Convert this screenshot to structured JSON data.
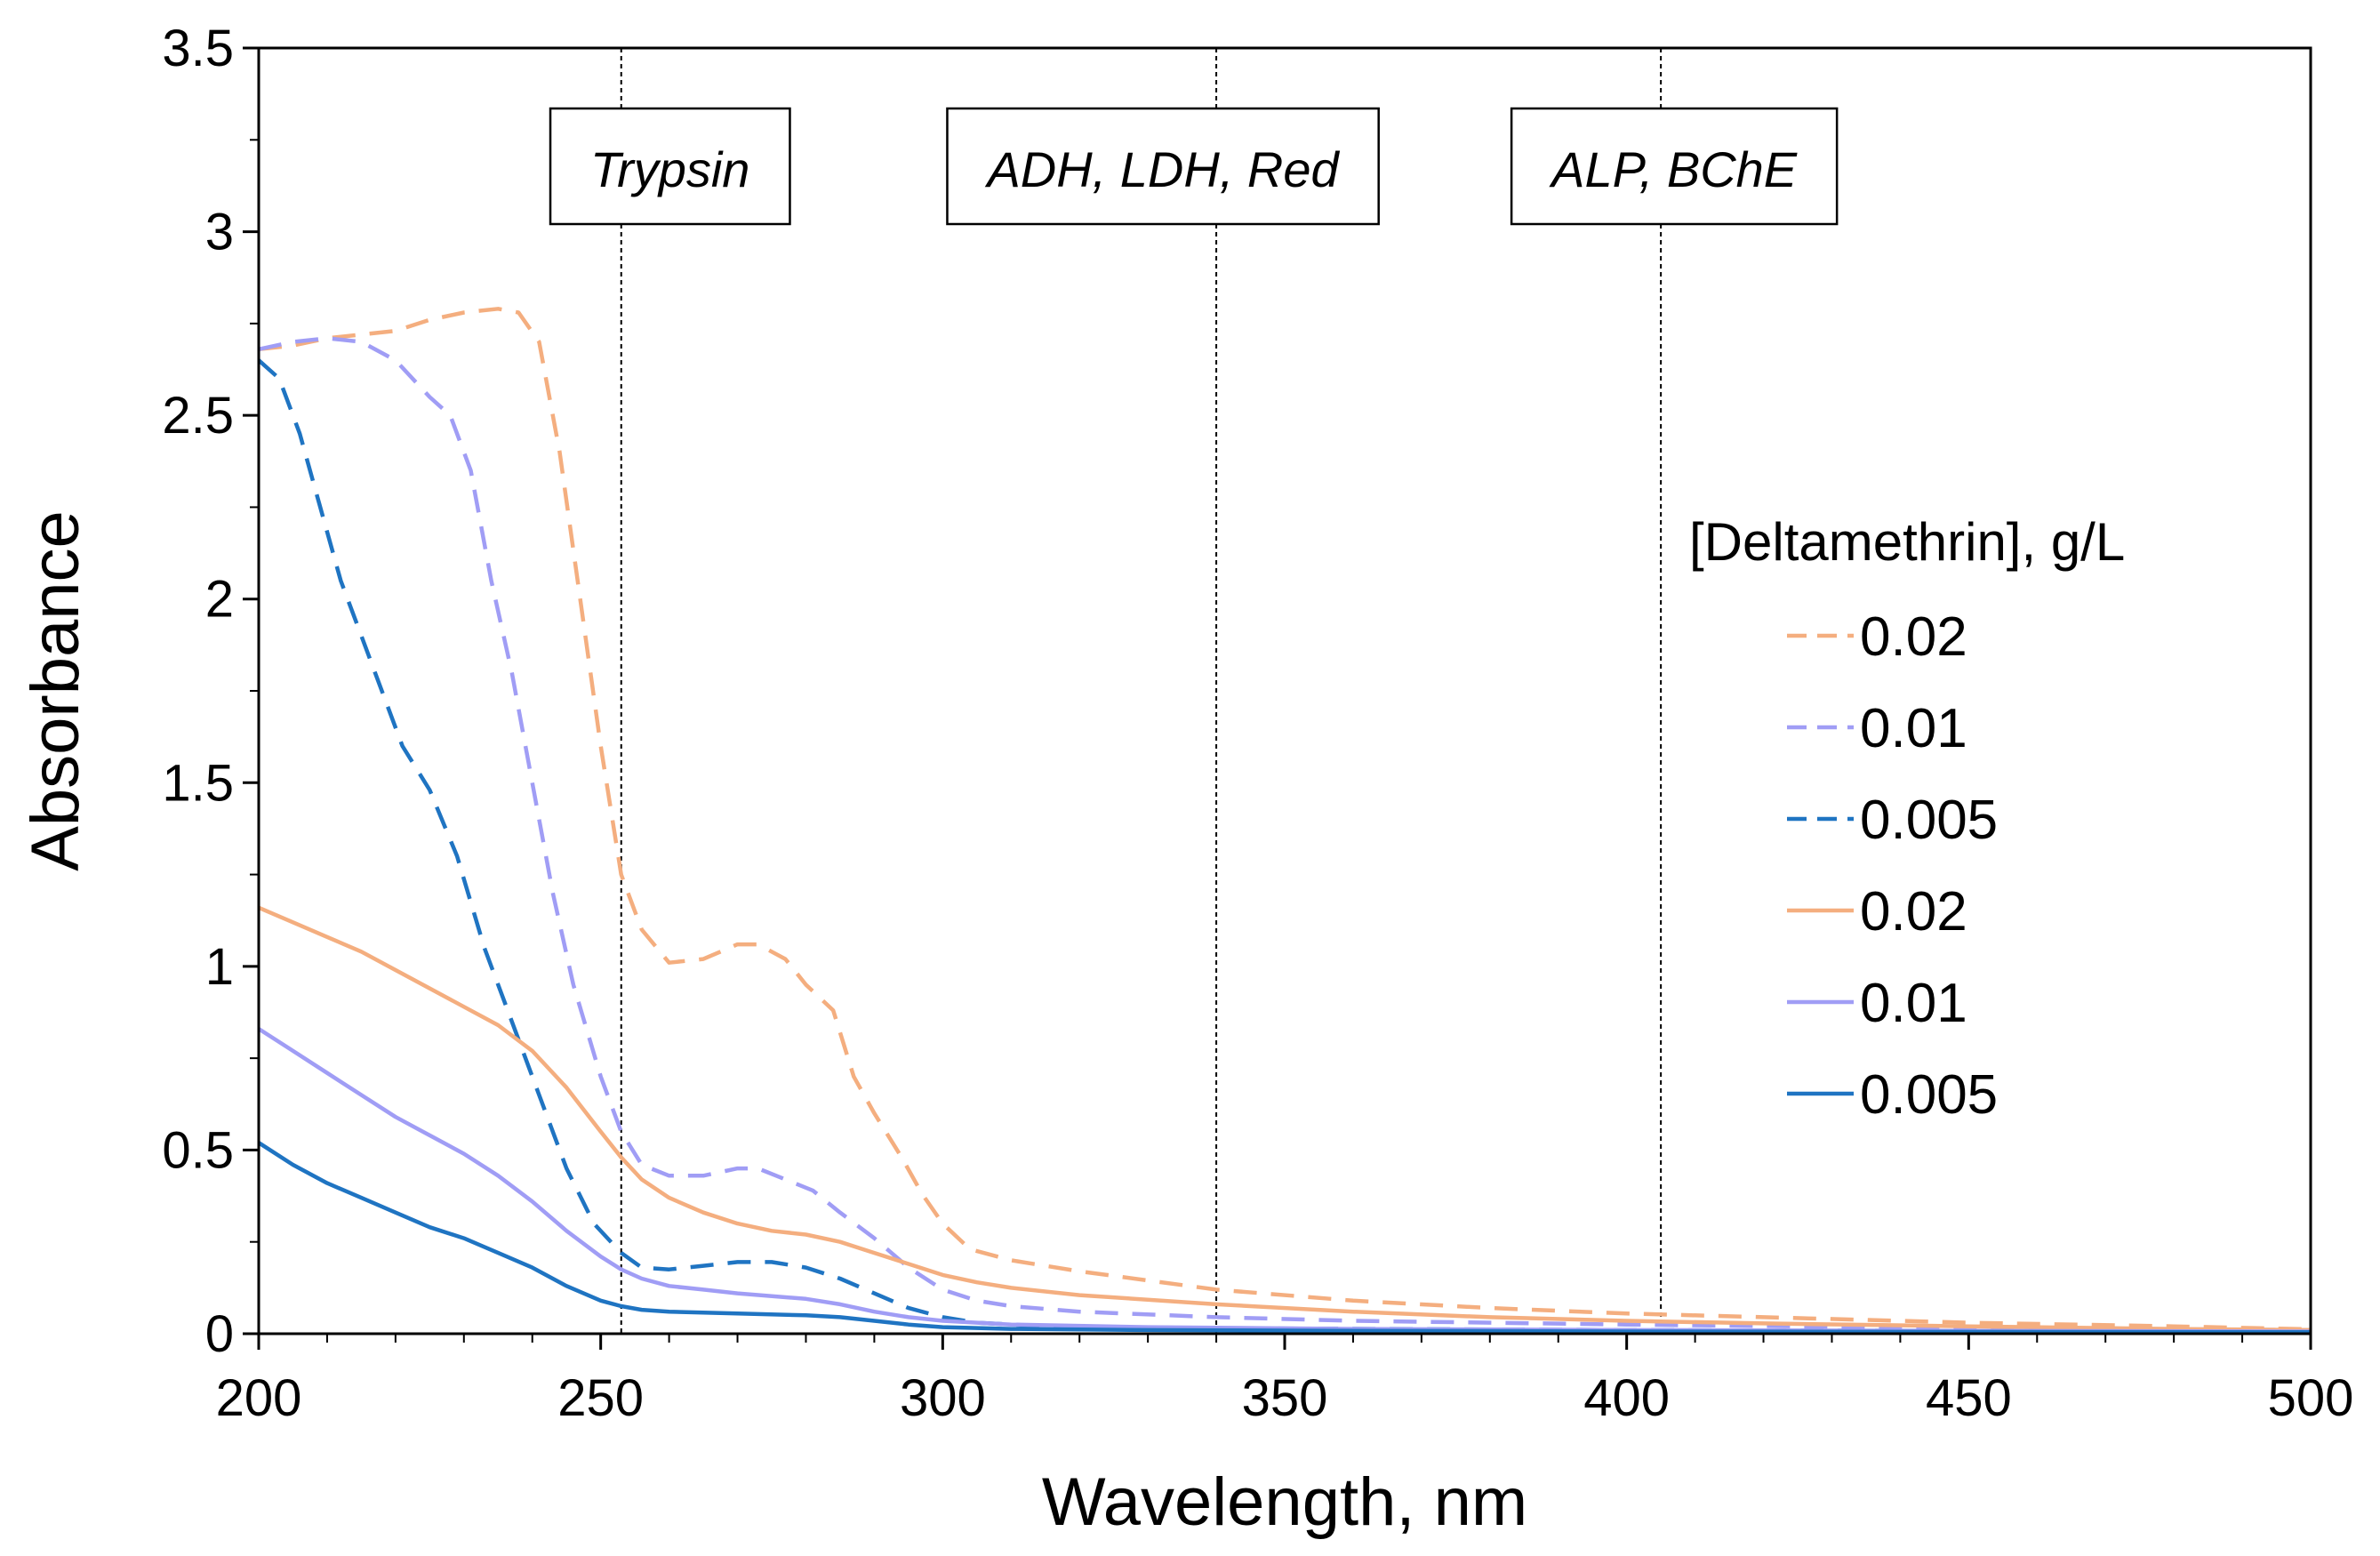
{
  "chart_data": {
    "type": "line",
    "title": "",
    "xlabel": "Wavelength, nm",
    "ylabel": "Absorbance",
    "xlim": [
      200,
      500
    ],
    "ylim": [
      0,
      3.5
    ],
    "xticks": [
      200,
      250,
      300,
      350,
      400,
      450,
      500
    ],
    "xtick_labels": [
      "200",
      "250",
      "300",
      "350",
      "400",
      "450",
      "500"
    ],
    "yticks": [
      0,
      0.5,
      1,
      1.5,
      2,
      2.5,
      3,
      3.5
    ],
    "ytick_labels": [
      "0",
      "0.5",
      "1",
      "1.5",
      "2",
      "2.5",
      "3",
      "3.5"
    ],
    "grid": false,
    "legend": {
      "title": "[Deltamethrin], g/L",
      "placement": "right"
    },
    "annotations": [
      {
        "text": "Trypsin",
        "x": 253
      },
      {
        "text": "ADH, LDH, Red",
        "x": 340
      },
      {
        "text": "ALP, BChE",
        "x": 405
      }
    ],
    "series": [
      {
        "name": "0.02",
        "color": "#F4AE7F",
        "dashed": true,
        "points": [
          [
            200,
            2.68
          ],
          [
            205,
            2.69
          ],
          [
            210,
            2.71
          ],
          [
            215,
            2.72
          ],
          [
            220,
            2.73
          ],
          [
            225,
            2.76
          ],
          [
            230,
            2.78
          ],
          [
            235,
            2.79
          ],
          [
            238,
            2.78
          ],
          [
            241,
            2.7
          ],
          [
            244,
            2.4
          ],
          [
            247,
            2.0
          ],
          [
            250,
            1.6
          ],
          [
            253,
            1.25
          ],
          [
            256,
            1.1
          ],
          [
            260,
            1.01
          ],
          [
            265,
            1.02
          ],
          [
            270,
            1.06
          ],
          [
            273,
            1.06
          ],
          [
            277,
            1.02
          ],
          [
            280,
            0.95
          ],
          [
            284,
            0.88
          ],
          [
            287,
            0.7
          ],
          [
            290,
            0.6
          ],
          [
            294,
            0.48
          ],
          [
            297,
            0.38
          ],
          [
            300,
            0.3
          ],
          [
            304,
            0.23
          ],
          [
            310,
            0.2
          ],
          [
            320,
            0.17
          ],
          [
            340,
            0.12
          ],
          [
            360,
            0.09
          ],
          [
            380,
            0.07
          ],
          [
            400,
            0.055
          ],
          [
            420,
            0.045
          ],
          [
            450,
            0.03
          ],
          [
            480,
            0.02
          ],
          [
            500,
            0.012
          ]
        ]
      },
      {
        "name": "0.01",
        "color": "#A09DF5",
        "dashed": true,
        "points": [
          [
            200,
            2.68
          ],
          [
            205,
            2.7
          ],
          [
            210,
            2.71
          ],
          [
            215,
            2.7
          ],
          [
            220,
            2.65
          ],
          [
            225,
            2.55
          ],
          [
            228,
            2.5
          ],
          [
            231,
            2.35
          ],
          [
            234,
            2.05
          ],
          [
            237,
            1.8
          ],
          [
            240,
            1.5
          ],
          [
            243,
            1.2
          ],
          [
            246,
            0.95
          ],
          [
            250,
            0.7
          ],
          [
            253,
            0.55
          ],
          [
            256,
            0.46
          ],
          [
            260,
            0.43
          ],
          [
            265,
            0.43
          ],
          [
            270,
            0.45
          ],
          [
            273,
            0.45
          ],
          [
            277,
            0.42
          ],
          [
            281,
            0.39
          ],
          [
            285,
            0.33
          ],
          [
            290,
            0.26
          ],
          [
            295,
            0.18
          ],
          [
            300,
            0.12
          ],
          [
            305,
            0.09
          ],
          [
            310,
            0.075
          ],
          [
            320,
            0.06
          ],
          [
            340,
            0.045
          ],
          [
            360,
            0.035
          ],
          [
            400,
            0.025
          ],
          [
            450,
            0.015
          ],
          [
            500,
            0.01
          ]
        ]
      },
      {
        "name": "0.005",
        "color": "#1F74C2",
        "dashed": true,
        "points": [
          [
            200,
            2.65
          ],
          [
            203,
            2.6
          ],
          [
            206,
            2.45
          ],
          [
            209,
            2.25
          ],
          [
            212,
            2.05
          ],
          [
            215,
            1.9
          ],
          [
            218,
            1.75
          ],
          [
            221,
            1.6
          ],
          [
            225,
            1.48
          ],
          [
            229,
            1.3
          ],
          [
            233,
            1.05
          ],
          [
            237,
            0.85
          ],
          [
            241,
            0.65
          ],
          [
            245,
            0.45
          ],
          [
            249,
            0.3
          ],
          [
            253,
            0.22
          ],
          [
            256,
            0.18
          ],
          [
            260,
            0.175
          ],
          [
            265,
            0.185
          ],
          [
            270,
            0.195
          ],
          [
            275,
            0.195
          ],
          [
            280,
            0.18
          ],
          [
            285,
            0.15
          ],
          [
            290,
            0.11
          ],
          [
            295,
            0.07
          ],
          [
            300,
            0.045
          ],
          [
            305,
            0.03
          ],
          [
            315,
            0.02
          ],
          [
            340,
            0.015
          ],
          [
            400,
            0.01
          ],
          [
            500,
            0.005
          ]
        ]
      },
      {
        "name": "0.02",
        "color": "#F4AE7F",
        "dashed": false,
        "points": [
          [
            200,
            1.16
          ],
          [
            205,
            1.12
          ],
          [
            210,
            1.08
          ],
          [
            215,
            1.04
          ],
          [
            220,
            0.99
          ],
          [
            225,
            0.94
          ],
          [
            230,
            0.89
          ],
          [
            235,
            0.84
          ],
          [
            240,
            0.77
          ],
          [
            245,
            0.67
          ],
          [
            250,
            0.55
          ],
          [
            253,
            0.48
          ],
          [
            256,
            0.42
          ],
          [
            260,
            0.37
          ],
          [
            265,
            0.33
          ],
          [
            270,
            0.3
          ],
          [
            275,
            0.28
          ],
          [
            280,
            0.27
          ],
          [
            285,
            0.25
          ],
          [
            290,
            0.22
          ],
          [
            295,
            0.19
          ],
          [
            300,
            0.16
          ],
          [
            305,
            0.14
          ],
          [
            310,
            0.125
          ],
          [
            320,
            0.105
          ],
          [
            340,
            0.08
          ],
          [
            360,
            0.06
          ],
          [
            380,
            0.045
          ],
          [
            400,
            0.035
          ],
          [
            420,
            0.028
          ],
          [
            450,
            0.02
          ],
          [
            480,
            0.013
          ],
          [
            500,
            0.01
          ]
        ]
      },
      {
        "name": "0.01",
        "color": "#A09DF5",
        "dashed": false,
        "points": [
          [
            200,
            0.83
          ],
          [
            205,
            0.77
          ],
          [
            210,
            0.71
          ],
          [
            215,
            0.65
          ],
          [
            220,
            0.59
          ],
          [
            225,
            0.54
          ],
          [
            230,
            0.49
          ],
          [
            235,
            0.43
          ],
          [
            240,
            0.36
          ],
          [
            245,
            0.28
          ],
          [
            250,
            0.21
          ],
          [
            253,
            0.175
          ],
          [
            256,
            0.15
          ],
          [
            260,
            0.13
          ],
          [
            265,
            0.12
          ],
          [
            270,
            0.11
          ],
          [
            280,
            0.095
          ],
          [
            285,
            0.08
          ],
          [
            290,
            0.06
          ],
          [
            295,
            0.045
          ],
          [
            300,
            0.035
          ],
          [
            310,
            0.025
          ],
          [
            330,
            0.018
          ],
          [
            360,
            0.013
          ],
          [
            400,
            0.01
          ],
          [
            450,
            0.008
          ],
          [
            500,
            0.006
          ]
        ]
      },
      {
        "name": "0.005",
        "color": "#1F74C2",
        "dashed": false,
        "points": [
          [
            200,
            0.52
          ],
          [
            205,
            0.46
          ],
          [
            210,
            0.41
          ],
          [
            215,
            0.37
          ],
          [
            220,
            0.33
          ],
          [
            225,
            0.29
          ],
          [
            230,
            0.26
          ],
          [
            235,
            0.22
          ],
          [
            240,
            0.18
          ],
          [
            245,
            0.13
          ],
          [
            250,
            0.09
          ],
          [
            253,
            0.075
          ],
          [
            256,
            0.065
          ],
          [
            260,
            0.06
          ],
          [
            270,
            0.055
          ],
          [
            280,
            0.05
          ],
          [
            285,
            0.045
          ],
          [
            290,
            0.035
          ],
          [
            295,
            0.025
          ],
          [
            300,
            0.018
          ],
          [
            310,
            0.013
          ],
          [
            330,
            0.01
          ],
          [
            360,
            0.008
          ],
          [
            400,
            0.006
          ],
          [
            450,
            0.005
          ],
          [
            500,
            0.004
          ]
        ]
      }
    ]
  }
}
